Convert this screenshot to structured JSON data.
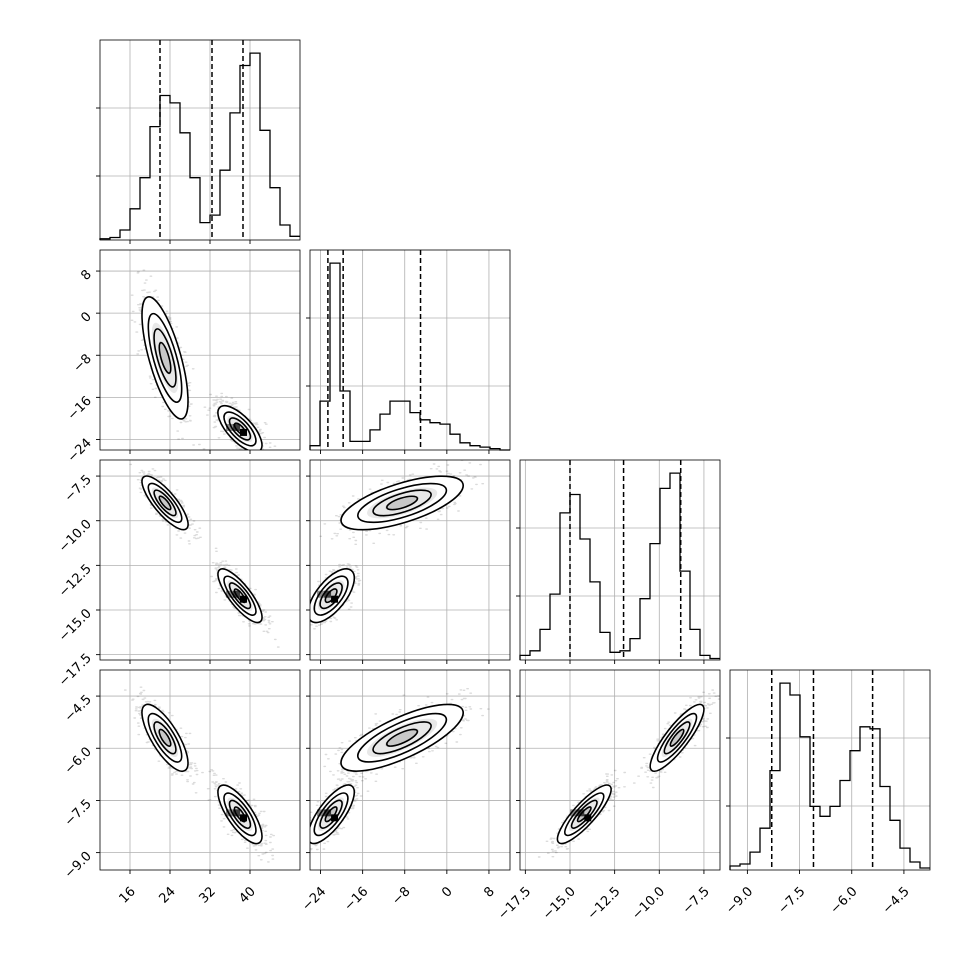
{
  "chart_data": {
    "type": "corner",
    "grid": true,
    "n_params": 4,
    "params": [
      {
        "range": [
          10,
          50
        ],
        "ticks": [
          16,
          24,
          32,
          40
        ],
        "tick_labels": [
          "16",
          "24",
          "32",
          "40"
        ]
      },
      {
        "range": [
          -26,
          12
        ],
        "ticks": [
          -24,
          -16,
          -8,
          0,
          8
        ],
        "tick_labels": [
          "−24",
          "−16",
          "−8",
          "0",
          "8"
        ]
      },
      {
        "range": [
          -17.8,
          -6.6
        ],
        "ticks": [
          -17.5,
          -15.0,
          -12.5,
          -10.0,
          -7.5
        ],
        "tick_labels": [
          "−17.5",
          "−15.0",
          "−12.5",
          "−10.0",
          "−7.5"
        ]
      },
      {
        "range": [
          -9.5,
          -3.75
        ],
        "ticks": [
          -9.0,
          -7.5,
          -6.0,
          -4.5
        ],
        "tick_labels": [
          "−9.0",
          "−7.5",
          "−6.0",
          "−4.5"
        ]
      }
    ],
    "histograms": [
      {
        "bins_min": 10,
        "bin_width": 2,
        "counts": [
          1,
          2,
          8,
          25,
          50,
          91,
          116,
          110,
          86,
          50,
          14,
          20,
          56,
          102,
          140,
          150,
          88,
          42,
          12,
          3
        ],
        "quantiles": [
          22.0,
          32.4,
          38.6
        ]
      },
      {
        "bins_min": -26,
        "bin_width": 1.9,
        "counts": [
          3,
          34,
          130,
          41,
          6,
          6,
          14,
          25,
          34,
          34,
          26,
          21,
          19,
          18,
          11,
          5,
          3,
          2,
          1,
          0
        ],
        "quantiles": [
          -22.6,
          -19.7,
          -5.0
        ]
      },
      {
        "bins_min": -17.8,
        "bin_width": 0.56,
        "counts": [
          3,
          6,
          20,
          43,
          96,
          108,
          79,
          51,
          18,
          5,
          6,
          14,
          40,
          76,
          112,
          122,
          58,
          20,
          3,
          1
        ],
        "quantiles": [
          -15.0,
          -12.0,
          -8.8
        ]
      },
      {
        "bins_min": -9.5,
        "bin_width": 0.2875,
        "counts": [
          2,
          3,
          9,
          21,
          50,
          94,
          88,
          67,
          32,
          27,
          32,
          45,
          60,
          72,
          71,
          42,
          25,
          11,
          4,
          1
        ],
        "quantiles": [
          -8.3,
          -7.1,
          -5.4
        ]
      }
    ],
    "modes": [
      {
        "weight": 0.52,
        "mean": [
          38,
          -22,
          -14.2,
          -7.9
        ],
        "sd": [
          2.2,
          2.2,
          0.75,
          0.42
        ]
      },
      {
        "weight": 0.48,
        "mean": [
          23,
          -8.5,
          -9.0,
          -5.7
        ],
        "sd": [
          2.3,
          5.8,
          0.75,
          0.48
        ]
      }
    ],
    "corr_within_mode": [
      [
        1.0,
        -0.7,
        -0.8,
        -0.75
      ],
      [
        -0.7,
        1.0,
        0.65,
        0.75
      ],
      [
        -0.8,
        0.65,
        1.0,
        0.85
      ],
      [
        -0.75,
        0.75,
        0.85,
        1.0
      ]
    ],
    "samples_per_panel": 1600
  }
}
